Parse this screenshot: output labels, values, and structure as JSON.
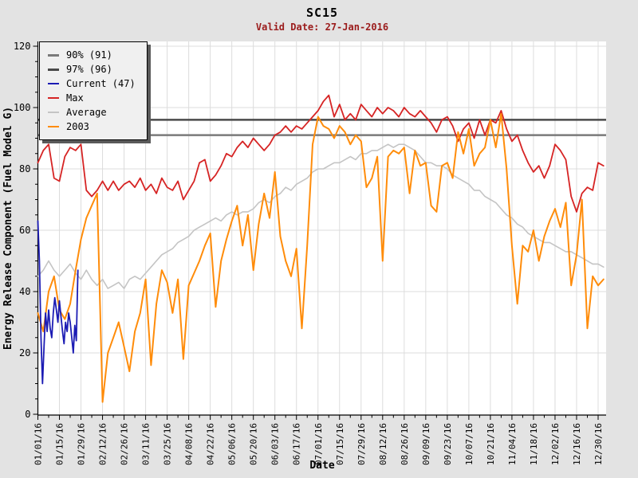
{
  "title": "SC15",
  "subtitle": "Valid Date: 27-Jan-2016",
  "colors": {
    "page_background": "#e3e3e3",
    "plot_background": "#ffffff",
    "gridline": "#dcdcdc",
    "axis": "#000000",
    "subtitle_text": "#9b1c1c",
    "percentile_90": "#7a7a7a",
    "percentile_97": "#4a4a4a",
    "current": "#1c1cb4",
    "max": "#d62424",
    "average": "#c4c4c4",
    "year_2003": "#ff8c0a",
    "legend_background": "#f0f0f0",
    "legend_shadow": "#5a5a5a"
  },
  "legend": {
    "items": [
      {
        "label": "90% (91)",
        "color_key": "percentile_90",
        "thick": true
      },
      {
        "label": "97% (96)",
        "color_key": "percentile_97",
        "thick": true
      },
      {
        "label": "Current (47)",
        "color_key": "current",
        "thick": false
      },
      {
        "label": "Max",
        "color_key": "max",
        "thick": false
      },
      {
        "label": "Average",
        "color_key": "average",
        "thick": false
      },
      {
        "label": "2003",
        "color_key": "year_2003",
        "thick": false
      }
    ]
  },
  "chart_data": {
    "type": "line",
    "title": "SC15",
    "subtitle": "Valid Date: 27-Jan-2016",
    "xlabel": "Date",
    "ylabel": "Energy Release Component (Fuel Model G)",
    "ylim": [
      0,
      120
    ],
    "y_major_tick_step": 20,
    "y_minor_tick_step": 5,
    "y_tick_labels": [
      "0",
      "20",
      "40",
      "60",
      "80",
      "100",
      "120"
    ],
    "x_domain_days": [
      0,
      368
    ],
    "x_major_tick_step_days": 14,
    "x_minor_tick_step_days": 7,
    "x_tick_labels": [
      "01/01/16",
      "01/15/16",
      "01/29/16",
      "02/12/16",
      "02/26/16",
      "03/11/16",
      "03/25/16",
      "04/08/16",
      "04/22/16",
      "05/06/16",
      "05/20/16",
      "06/03/16",
      "06/17/16",
      "07/01/16",
      "07/15/16",
      "07/29/16",
      "08/12/16",
      "08/26/16",
      "09/09/16",
      "09/23/16",
      "10/07/16",
      "10/21/16",
      "11/04/16",
      "11/18/16",
      "12/02/16",
      "12/16/16",
      "12/30/16"
    ],
    "grid": true,
    "legend_position": "top-left",
    "reference_lines": [
      {
        "name": "90% (91)",
        "value": 91,
        "color_key": "percentile_90",
        "width": 2.5
      },
      {
        "name": "97% (96)",
        "value": 96,
        "color_key": "percentile_97",
        "width": 2.5
      }
    ],
    "series": [
      {
        "name": "Average",
        "color_key": "average",
        "width": 1.6,
        "x_start": 0,
        "x_step": 3.5,
        "values": [
          45,
          47,
          50,
          47,
          45,
          47,
          49,
          46,
          44,
          47,
          44,
          42,
          44,
          41,
          42,
          43,
          41,
          44,
          45,
          44,
          46,
          48,
          50,
          52,
          53,
          54,
          56,
          57,
          58,
          60,
          61,
          62,
          63,
          64,
          63,
          65,
          66,
          65,
          66,
          66,
          67,
          69,
          70,
          69,
          71,
          72,
          74,
          73,
          75,
          76,
          77,
          79,
          80,
          80,
          81,
          82,
          82,
          83,
          84,
          83,
          85,
          85,
          86,
          86,
          87,
          88,
          87,
          88,
          88,
          87,
          86,
          84,
          82,
          82,
          81,
          81,
          80,
          78,
          77,
          76,
          75,
          73,
          73,
          71,
          70,
          69,
          67,
          65,
          64,
          62,
          61,
          59,
          58,
          57,
          56,
          56,
          55,
          54,
          53,
          53,
          52,
          51,
          50,
          49,
          49,
          48
        ]
      },
      {
        "name": "Max",
        "color_key": "max",
        "width": 1.8,
        "x_start": 0,
        "x_step": 3.5,
        "values": [
          82,
          86,
          88,
          77,
          76,
          84,
          87,
          86,
          88,
          73,
          71,
          73,
          76,
          73,
          76,
          73,
          75,
          76,
          74,
          77,
          73,
          75,
          72,
          77,
          74,
          73,
          76,
          70,
          73,
          76,
          82,
          83,
          76,
          78,
          81,
          85,
          84,
          87,
          89,
          87,
          90,
          88,
          86,
          88,
          91,
          92,
          94,
          92,
          94,
          93,
          95,
          97,
          99,
          102,
          104,
          97,
          101,
          96,
          98,
          96,
          101,
          99,
          97,
          100,
          98,
          100,
          99,
          97,
          100,
          98,
          97,
          99,
          97,
          95,
          92,
          96,
          97,
          94,
          89,
          93,
          95,
          90,
          96,
          91,
          96,
          95,
          99,
          93,
          89,
          91,
          86,
          82,
          79,
          81,
          77,
          81,
          88,
          86,
          83,
          71,
          66,
          72,
          74,
          73,
          82,
          81
        ]
      },
      {
        "name": "2003",
        "color_key": "year_2003",
        "width": 2,
        "x_start": 0,
        "x_step": 3.5,
        "values": [
          33,
          27,
          40,
          45,
          34,
          31,
          36,
          47,
          57,
          64,
          68,
          72,
          4,
          20,
          25,
          30,
          22,
          14,
          27,
          33,
          44,
          16,
          36,
          47,
          43,
          33,
          44,
          18,
          42,
          46,
          50,
          55,
          59,
          35,
          50,
          57,
          63,
          68,
          55,
          65,
          47,
          62,
          72,
          64,
          79,
          58,
          50,
          45,
          54,
          28,
          55,
          88,
          97,
          94,
          93,
          90,
          94,
          92,
          88,
          91,
          89,
          74,
          77,
          84,
          50,
          84,
          86,
          85,
          87,
          72,
          86,
          81,
          82,
          68,
          66,
          81,
          82,
          77,
          92,
          85,
          93,
          81,
          85,
          87,
          96,
          87,
          98,
          80,
          55,
          36,
          55,
          53,
          60,
          50,
          58,
          63,
          67,
          61,
          69,
          42,
          52,
          70,
          28,
          45,
          42,
          44
        ]
      },
      {
        "name": "Current (47)",
        "color_key": "current",
        "width": 1.8,
        "x_start": 0,
        "x_step": 1,
        "values": [
          63,
          50,
          25,
          10,
          22,
          33,
          27,
          34,
          28,
          25,
          33,
          38,
          34,
          30,
          37,
          32,
          27,
          23,
          30,
          27,
          33,
          30,
          25,
          20,
          29,
          24,
          47
        ]
      }
    ]
  }
}
